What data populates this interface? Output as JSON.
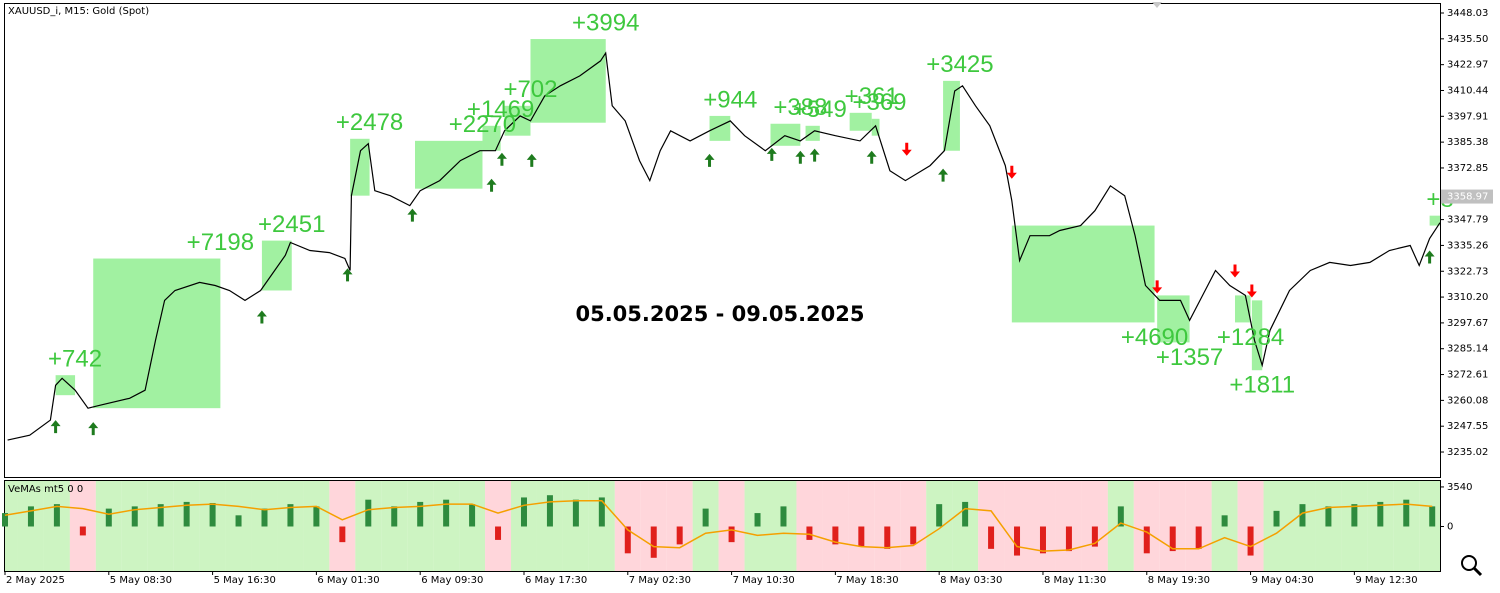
{
  "chart_data": [
    {
      "type": "line",
      "title": "XAUUSD_i, M15:  Gold (Spot)",
      "annotation": "05.05.2025 - 09.05.2025",
      "annotation_color": "#e8262d",
      "x": [
        0.2,
        1.9,
        3.5,
        3.9,
        4.4,
        5.4,
        6.4,
        7.3,
        9.6,
        10.8,
        11.6,
        12.3,
        13.1,
        15.0,
        16.2,
        17.3,
        18.5,
        19.7,
        21.6,
        22.0,
        23.5,
        25.0,
        26.2,
        26.6,
        26.7,
        27.4,
        28.0,
        28.5,
        29.7,
        31.2,
        32.0,
        33.5,
        35.1,
        36.6,
        37.8,
        38.5,
        39.7,
        40.5,
        41.6,
        42.8,
        44.3,
        45.9,
        46.3,
        46.8,
        47.8,
        48.9,
        49.7,
        50.5,
        51.3,
        52.8,
        54.3,
        55.9,
        57.0,
        58.6,
        60.1,
        61.3,
        62.4,
        64.0,
        65.9,
        67.1,
        68.2,
        69.4,
        71.3,
        72.4,
        73.2,
        73.8,
        74.8,
        75.9,
        77.1,
        77.6,
        78.2,
        79.0,
        80.5,
        81.3,
        82.9,
        84.0,
        85.2,
        86.3,
        87.1,
        87.9,
        89.0,
        90.6,
        91.3,
        92.1,
        93.3,
        94.4,
        95.6,
        96.3,
        96.9,
        97.5,
        99.0,
        100.6,
        102.1,
        103.7,
        105.2,
        106.7,
        108.3,
        109.0,
        109.8,
        110.6
      ],
      "series": [
        {
          "color": "#000000",
          "values": [
            3240.8,
            3243.2,
            3250.5,
            3267.4,
            3270.8,
            3265.0,
            3256.3,
            3257.7,
            3261.1,
            3265.0,
            3289.2,
            3308.6,
            3313.4,
            3317.3,
            3315.8,
            3313.4,
            3308.6,
            3313.4,
            3330.4,
            3336.7,
            3332.8,
            3331.8,
            3328.9,
            3323.1,
            3359.4,
            3381.2,
            3384.6,
            3361.8,
            3359.4,
            3354.6,
            3361.8,
            3366.7,
            3376.4,
            3381.2,
            3381.2,
            3390.9,
            3398.1,
            3395.7,
            3407.8,
            3412.7,
            3417.5,
            3424.8,
            3428.6,
            3403.0,
            3395.7,
            3376.4,
            3366.7,
            3381.2,
            3390.9,
            3386.0,
            3390.9,
            3395.7,
            3388.5,
            3381.2,
            3388.5,
            3386.0,
            3390.9,
            3388.5,
            3386.0,
            3393.3,
            3371.5,
            3366.7,
            3374.0,
            3381.2,
            3410.2,
            3412.7,
            3403.0,
            3393.3,
            3374.0,
            3357.0,
            3327.9,
            3340.0,
            3340.0,
            3342.5,
            3344.9,
            3352.1,
            3364.2,
            3359.4,
            3340.0,
            3315.8,
            3308.6,
            3308.6,
            3298.9,
            3308.6,
            3323.1,
            3315.8,
            3311.0,
            3289.2,
            3277.1,
            3294.1,
            3313.4,
            3323.1,
            3327.0,
            3325.5,
            3327.0,
            3332.8,
            3335.2,
            3325.5,
            3338.6,
            3346.3
          ]
        }
      ],
      "xlim": [
        0,
        110.6
      ],
      "ylim": [
        3222.9,
        3452.4
      ],
      "yticks": [
        3448.03,
        {
          "value": 3435.5,
          "label": "3435.50"
        },
        3422.97,
        3410.44,
        3397.91,
        3385.38,
        3372.85,
        3347.79,
        3335.26,
        3322.73,
        {
          "value": 3310.2,
          "label": "3310.20"
        },
        3297.67,
        3285.14,
        3272.61,
        3260.08,
        3247.55,
        3235.02
      ],
      "last_price": 3358.97,
      "trade_color": "#90ee90",
      "trade_label_color": "#3ec83e",
      "trades": [
        {
          "label": "+742",
          "side": "buy",
          "x": [
            3.9,
            5.4
          ],
          "y": [
            3262.6,
            3272.3
          ]
        },
        {
          "label": "+7198",
          "side": "buy",
          "x": [
            6.8,
            16.6
          ],
          "y": [
            3256.3,
            3328.9
          ]
        },
        {
          "label": "+2451",
          "side": "buy",
          "x": [
            19.8,
            22.1
          ],
          "y": [
            3313.4,
            3337.6
          ]
        },
        {
          "label": "+2478",
          "side": "buy",
          "x": [
            26.6,
            28.1
          ],
          "y": [
            3359.4,
            3387.0
          ]
        },
        {
          "label": "+2270",
          "side": "buy",
          "x": [
            31.6,
            36.8
          ],
          "y": [
            3362.8,
            3386.0
          ]
        },
        {
          "label": "+1469",
          "side": "buy",
          "x": [
            36.8,
            38.2
          ],
          "y": [
            3381.2,
            3393.3
          ]
        },
        {
          "label": "+702",
          "side": "buy",
          "x": [
            38.5,
            40.5
          ],
          "y": [
            3388.5,
            3403.0
          ]
        },
        {
          "label": "+3994",
          "side": "buy",
          "x": [
            40.5,
            46.3
          ],
          "y": [
            3394.8,
            3435.4
          ]
        },
        {
          "label": "+944",
          "side": "buy",
          "x": [
            54.3,
            55.9
          ],
          "y": [
            3386.0,
            3398.1
          ]
        },
        {
          "label": "+388",
          "side": "buy",
          "x": [
            59.0,
            61.3
          ],
          "y": [
            3383.6,
            3394.3
          ]
        },
        {
          "label": "+549",
          "side": "buy",
          "x": [
            61.7,
            62.8
          ],
          "y": [
            3386.0,
            3393.3
          ]
        },
        {
          "label": "+361",
          "side": "buy",
          "x": [
            65.1,
            66.8
          ],
          "y": [
            3390.9,
            3399.6
          ]
        },
        {
          "label": "+369",
          "side": "buy",
          "x": [
            66.8,
            67.4
          ],
          "y": [
            3388.5,
            3396.7
          ]
        },
        {
          "label": "+3425",
          "side": "buy",
          "x": [
            72.3,
            73.6
          ],
          "y": [
            3381.2,
            3415.1
          ]
        },
        {
          "label": "+4690",
          "side": "sell",
          "x": [
            77.6,
            88.6
          ],
          "y": [
            3297.9,
            3344.9
          ]
        },
        {
          "label": "+1357",
          "side": "sell",
          "x": [
            88.8,
            91.3
          ],
          "y": [
            3288.2,
            3311.0
          ]
        },
        {
          "label": "+1284",
          "side": "sell",
          "x": [
            94.8,
            96.0
          ],
          "y": [
            3297.9,
            3311.0
          ]
        },
        {
          "label": "+1811",
          "side": "sell",
          "x": [
            96.1,
            96.9
          ],
          "y": [
            3274.7,
            3308.6
          ]
        },
        {
          "label": "+8",
          "side": "buy",
          "x": [
            109.8,
            110.6
          ],
          "y": [
            3344.9,
            3349.7
          ]
        }
      ],
      "up_color": "#1e7b1e",
      "down_color": "#ff0000",
      "signals": [
        {
          "x": 3.9,
          "y": 3250.5,
          "direction": "up"
        },
        {
          "x": 6.8,
          "y": 3249.5,
          "direction": "up"
        },
        {
          "x": 19.8,
          "y": 3303.7,
          "direction": "up"
        },
        {
          "x": 26.4,
          "y": 3324.1,
          "direction": "up"
        },
        {
          "x": 31.4,
          "y": 3353.1,
          "direction": "up"
        },
        {
          "x": 37.5,
          "y": 3367.6,
          "direction": "up"
        },
        {
          "x": 38.3,
          "y": 3380.2,
          "direction": "up"
        },
        {
          "x": 40.6,
          "y": 3379.7,
          "direction": "up"
        },
        {
          "x": 54.3,
          "y": 3379.7,
          "direction": "up"
        },
        {
          "x": 59.1,
          "y": 3382.6,
          "direction": "up"
        },
        {
          "x": 61.3,
          "y": 3381.2,
          "direction": "up"
        },
        {
          "x": 62.4,
          "y": 3382.2,
          "direction": "up"
        },
        {
          "x": 66.8,
          "y": 3381.2,
          "direction": "up"
        },
        {
          "x": 72.3,
          "y": 3372.5,
          "direction": "up"
        },
        {
          "x": 109.8,
          "y": 3332.8,
          "direction": "up"
        },
        {
          "x": 69.5,
          "y": 3378.8,
          "direction": "down"
        },
        {
          "x": 77.6,
          "y": 3367.6,
          "direction": "down"
        },
        {
          "x": 88.8,
          "y": 3312.0,
          "direction": "down"
        },
        {
          "x": 94.8,
          "y": 3319.7,
          "direction": "down"
        },
        {
          "x": 96.1,
          "y": 3310.0,
          "direction": "down"
        }
      ]
    },
    {
      "type": "bar",
      "title": "VeMAs mt5 0 0",
      "x": [
        0,
        2,
        4,
        6,
        8,
        10,
        12,
        14,
        16,
        18,
        20,
        22,
        24,
        26,
        28,
        30,
        32,
        34,
        36,
        38,
        40,
        42,
        44,
        46,
        48,
        50,
        52,
        54,
        56,
        58,
        60,
        62,
        64,
        66,
        68,
        70,
        72,
        74,
        76,
        78,
        80,
        82,
        84,
        86,
        88,
        90,
        92,
        94,
        96,
        98,
        100,
        102,
        104,
        106,
        108,
        110
      ],
      "series": [
        {
          "type": "bar",
          "color": "#2e8b3e",
          "negative_color": "#e0201c",
          "background": "#b8f0a8",
          "negative_background": "#ffc4cc",
          "values": [
            1200,
            1800,
            2000,
            -800,
            1600,
            1800,
            2000,
            2200,
            2100,
            1000,
            1600,
            2000,
            1800,
            -1400,
            2400,
            1800,
            2200,
            2400,
            2000,
            -1200,
            2600,
            2800,
            2400,
            2600,
            -2400,
            -2800,
            -1600,
            1600,
            -1400,
            1200,
            1800,
            -1200,
            -1600,
            -1800,
            -2000,
            -1600,
            2000,
            2200,
            -2000,
            -2600,
            -2400,
            -2200,
            -1800,
            1800,
            -2400,
            -2200,
            -2000,
            1000,
            -2600,
            1400,
            2000,
            1800,
            2000,
            2200,
            2400,
            1800
          ]
        },
        {
          "type": "line",
          "color": "#f5a000",
          "values": [
            1000,
            1400,
            1800,
            1600,
            1100,
            1500,
            1700,
            1900,
            2000,
            1800,
            1500,
            1700,
            1800,
            600,
            1500,
            1700,
            1800,
            2000,
            2000,
            1200,
            1900,
            2200,
            2300,
            2300,
            -300,
            -1800,
            -1900,
            -600,
            -300,
            -800,
            -600,
            -700,
            -1400,
            -1800,
            -1900,
            -1700,
            -200,
            1600,
            1400,
            -1800,
            -2200,
            -2100,
            -1500,
            300,
            -500,
            -2000,
            -2000,
            -1000,
            -1800,
            -600,
            1200,
            1700,
            1800,
            1900,
            2000,
            1800
          ]
        }
      ],
      "xlim": [
        0,
        110.6
      ],
      "ylim": [
        -3982,
        4071
      ],
      "yticks": [
        3540,
        0
      ],
      "xticks": [
        {
          "value": 0,
          "label": "2 May 2025"
        },
        {
          "value": 8,
          "label": "5 May 08:30"
        },
        {
          "value": 16,
          "label": "5 May 16:30"
        },
        {
          "value": 24,
          "label": "6 May 01:30"
        },
        {
          "value": 32,
          "label": "6 May 09:30"
        },
        {
          "value": 40,
          "label": "6 May 17:30"
        },
        {
          "value": 48,
          "label": "7 May 02:30"
        },
        {
          "value": 56,
          "label": "7 May 10:30"
        },
        {
          "value": 64,
          "label": "7 May 18:30"
        },
        {
          "value": 72,
          "label": "8 May 03:30"
        },
        {
          "value": 80,
          "label": "8 May 11:30"
        },
        {
          "value": 88,
          "label": "8 May 19:30"
        },
        {
          "value": 96,
          "label": "9 May 04:30"
        },
        {
          "value": 104,
          "label": "9 May 12:30"
        }
      ]
    }
  ]
}
